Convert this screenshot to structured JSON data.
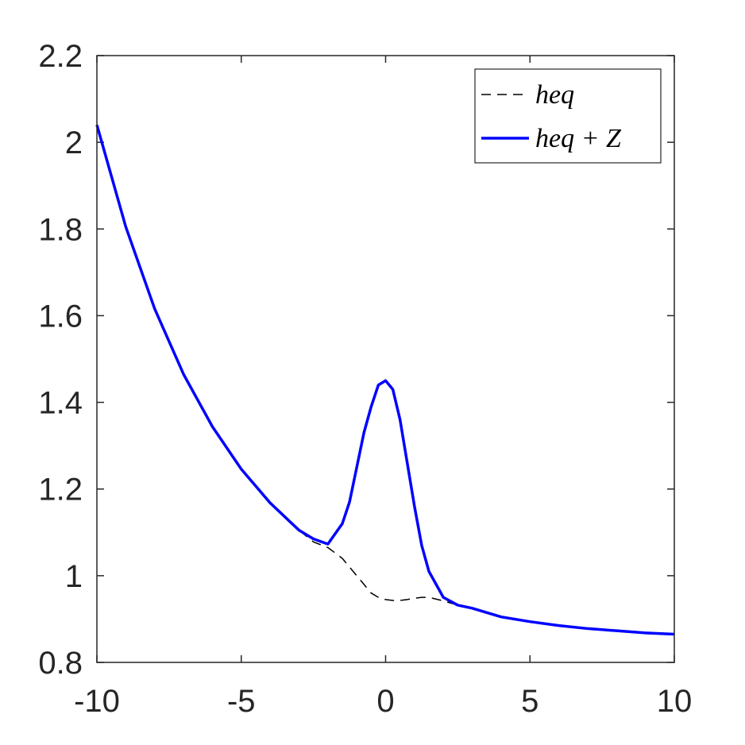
{
  "chart_data": {
    "type": "line",
    "x": [
      -10,
      -9,
      -8,
      -7,
      -6,
      -5,
      -4,
      -3,
      -2.5,
      -2,
      -1.5,
      -1.25,
      -1,
      -0.75,
      -0.5,
      -0.25,
      0,
      0.25,
      0.5,
      0.75,
      1,
      1.25,
      1.5,
      2,
      2.5,
      3,
      4,
      5,
      6,
      7,
      8,
      9,
      10
    ],
    "series": [
      {
        "name": "heq",
        "color": "#000000",
        "dash": true,
        "values": [
          2.04,
          1.805,
          1.616,
          1.465,
          1.344,
          1.246,
          1.168,
          1.105,
          1.078,
          1.065,
          1.04,
          1.02,
          1.0,
          0.98,
          0.96,
          0.95,
          0.945,
          0.943,
          0.943,
          0.945,
          0.948,
          0.95,
          0.95,
          0.942,
          0.932,
          0.925,
          0.905,
          0.894,
          0.885,
          0.878,
          0.873,
          0.868,
          0.865
        ]
      },
      {
        "name": "heq + Z",
        "color": "#0000ff",
        "dash": false,
        "values": [
          2.04,
          1.805,
          1.616,
          1.465,
          1.344,
          1.246,
          1.168,
          1.105,
          1.085,
          1.073,
          1.12,
          1.17,
          1.25,
          1.33,
          1.39,
          1.44,
          1.45,
          1.43,
          1.36,
          1.26,
          1.16,
          1.07,
          1.01,
          0.95,
          0.932,
          0.925,
          0.905,
          0.894,
          0.885,
          0.878,
          0.873,
          0.868,
          0.865
        ]
      }
    ],
    "xlim": [
      -10,
      10
    ],
    "xticks": [
      -10,
      -5,
      0,
      5,
      10
    ],
    "ylim": [
      0.8,
      2.2
    ],
    "yticks": [
      0.8,
      1,
      1.2,
      1.4,
      1.6,
      1.8,
      2,
      2.2
    ],
    "legend": "top-right"
  }
}
